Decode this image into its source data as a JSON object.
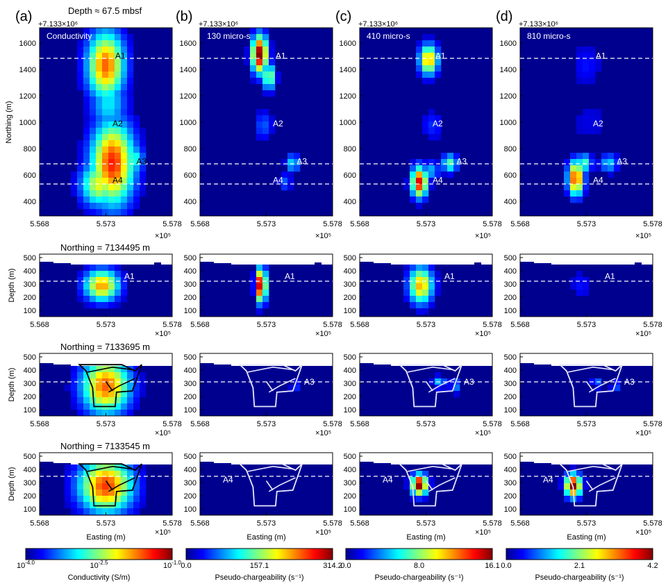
{
  "columns": [
    {
      "label": "(a)",
      "map_tag": "Conductivity",
      "colorbar_ticks": [
        "10^{-4.0}",
        "10^{-2.5}",
        "10^{-1.0}"
      ],
      "colorbar_label": "Conductivity (S/m)"
    },
    {
      "label": "(b)",
      "map_tag": "130 micro-s",
      "colorbar_ticks": [
        "0.0",
        "157.1",
        "314.2"
      ],
      "colorbar_label": "Pseudo-chargeability (s⁻¹)"
    },
    {
      "label": "(c)",
      "map_tag": "410 micro-s",
      "colorbar_ticks": [
        "0.0",
        "8.0",
        "16.1"
      ],
      "colorbar_label": "Pseudo-chargeability (s⁻¹)"
    },
    {
      "label": "(d)",
      "map_tag": "810 micro-s",
      "colorbar_ticks": [
        "0.0",
        "2.1",
        "4.2"
      ],
      "colorbar_label": "Pseudo-chargeability (s⁻¹)"
    }
  ],
  "depth_title": "Depth ≈ 67.5 mbsf",
  "offset_label": "+7.133×10⁶",
  "x_multiplier": "×10⁵",
  "map_y_label": "Northing (m)",
  "map_y_ticks": [
    "1600",
    "1400",
    "1200",
    "1000",
    "800",
    "600",
    "400"
  ],
  "x_ticks": [
    "5.568",
    "5.573",
    "5.578"
  ],
  "section_y_label": "Depth (m)",
  "section1_y_ticks": [
    "500",
    "400",
    "300",
    "200",
    "100"
  ],
  "section_y_ticks": [
    "500",
    "400",
    "300",
    "200",
    "100"
  ],
  "x_label": "Easting (m)",
  "section_titles": [
    "Northing = 7134495 m",
    "Northing = 7133695 m",
    "Northing = 7133545 m"
  ],
  "anomalies": [
    "A1",
    "A2",
    "A3",
    "A4"
  ],
  "colors": {
    "jet_dark": "#00008f",
    "jet_blue": "#0000ff",
    "jet_cyan": "#00ffff",
    "jet_yellow": "#ffff00",
    "jet_red": "#ff0000",
    "jet_darkred": "#800000"
  }
}
